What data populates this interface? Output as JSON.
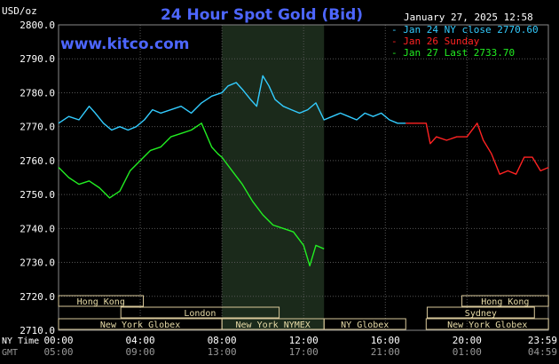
{
  "chart_data": {
    "type": "line",
    "title": "24 Hour Spot Gold (Bid)",
    "website": "www.kitco.com",
    "timestamp": "January 27, 2025 12:58",
    "ylabel": "USD/oz",
    "ylim": [
      2710.0,
      2800.0
    ],
    "y_ticks": [
      "2800.0",
      "2790.0",
      "2780.0",
      "2770.0",
      "2760.0",
      "2750.0",
      "2740.0",
      "2730.0",
      "2720.0",
      "2710.0"
    ],
    "grid": true,
    "legend_position": "top-right",
    "x_axis_rows": [
      {
        "label": "NY Time",
        "ticks": [
          "00:00",
          "04:00",
          "08:00",
          "12:00",
          "16:00",
          "20:00",
          "23:59"
        ]
      },
      {
        "label": "GMT",
        "ticks": [
          "05:00",
          "09:00",
          "13:00",
          "17:00",
          "21:00",
          "01:00",
          "04:59"
        ]
      }
    ],
    "series": [
      {
        "name": "Jan 24 NY close 2770.60",
        "color": "#33ccff",
        "x": [
          0.0,
          0.5,
          1.0,
          1.5,
          1.8,
          2.2,
          2.6,
          3.0,
          3.4,
          3.8,
          4.2,
          4.6,
          5.0,
          5.5,
          6.0,
          6.5,
          7.0,
          7.5,
          8.0,
          8.3,
          8.7,
          9.0,
          9.4,
          9.7,
          10.0,
          10.3,
          10.6,
          11.0,
          11.4,
          11.8,
          12.2,
          12.6,
          13.0,
          13.4,
          13.8,
          14.2,
          14.6,
          15.0,
          15.4,
          15.8,
          16.2,
          16.6,
          17.0
        ],
        "values": [
          2771.0,
          2773.0,
          2772.0,
          2776.0,
          2774.0,
          2771.0,
          2769.0,
          2770.0,
          2769.0,
          2770.0,
          2772.0,
          2775.0,
          2774.0,
          2775.0,
          2776.0,
          2774.0,
          2777.0,
          2779.0,
          2780.0,
          2782.0,
          2783.0,
          2781.0,
          2778.0,
          2776.0,
          2785.0,
          2782.0,
          2778.0,
          2776.0,
          2775.0,
          2774.0,
          2775.0,
          2777.0,
          2772.0,
          2773.0,
          2774.0,
          2773.0,
          2772.0,
          2774.0,
          2773.0,
          2774.0,
          2772.0,
          2771.0,
          2771.0
        ]
      },
      {
        "name": "Jan 26 Sunday",
        "color": "#ff2222",
        "x": [
          17.0,
          17.5,
          18.0,
          18.2,
          18.5,
          19.0,
          19.5,
          20.0,
          20.5,
          20.8,
          21.2,
          21.6,
          22.0,
          22.4,
          22.8,
          23.2,
          23.6,
          24.0
        ],
        "values": [
          2771.0,
          2771.0,
          2771.0,
          2765.0,
          2767.0,
          2766.0,
          2767.0,
          2767.0,
          2771.0,
          2766.0,
          2762.0,
          2756.0,
          2757.0,
          2756.0,
          2761.0,
          2761.0,
          2757.0,
          2758.0
        ]
      },
      {
        "name": "Jan 27 Last 2733.70",
        "color": "#22ee22",
        "x": [
          0.0,
          0.5,
          1.0,
          1.5,
          2.0,
          2.5,
          3.0,
          3.5,
          4.0,
          4.5,
          5.0,
          5.5,
          6.0,
          6.5,
          7.0,
          7.5,
          7.8,
          8.0,
          8.5,
          9.0,
          9.5,
          10.0,
          10.5,
          11.0,
          11.5,
          12.0,
          12.3,
          12.6,
          13.0
        ],
        "values": [
          2758.0,
          2755.0,
          2753.0,
          2754.0,
          2752.0,
          2749.0,
          2751.0,
          2757.0,
          2760.0,
          2763.0,
          2764.0,
          2767.0,
          2768.0,
          2769.0,
          2771.0,
          2764.0,
          2762.0,
          2761.0,
          2757.0,
          2753.0,
          2748.0,
          2744.0,
          2741.0,
          2740.0,
          2739.0,
          2735.0,
          2729.0,
          2735.0,
          2734.0
        ]
      }
    ],
    "sessions": [
      {
        "name": "Hong Kong",
        "row": 1,
        "start": 0.0,
        "end": 4.15
      },
      {
        "name": "Hong Kong",
        "row": 1,
        "start": 19.75,
        "end": 23.99
      },
      {
        "name": "London",
        "row": 2,
        "start": 3.05,
        "end": 10.8
      },
      {
        "name": "Sydney",
        "row": 2,
        "start": 18.05,
        "end": 23.3
      },
      {
        "name": "New York Globex",
        "row": 3,
        "start": 0.0,
        "end": 8.0
      },
      {
        "name": "New York NYMEX",
        "row": 3,
        "start": 8.0,
        "end": 13.0
      },
      {
        "name": "NY Globex",
        "row": 3,
        "start": 13.0,
        "end": 17.0
      },
      {
        "name": "New York Globex",
        "row": 3,
        "start": 18.0,
        "end": 23.99
      }
    ],
    "highlight_range": [
      8.0,
      13.0
    ]
  }
}
